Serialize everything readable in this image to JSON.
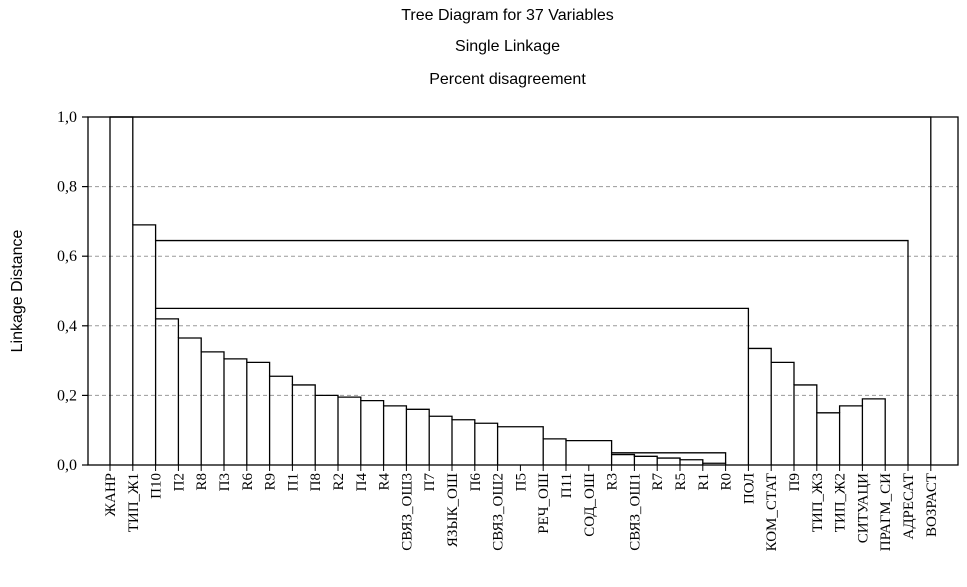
{
  "chart_data": {
    "type": "dendrogram",
    "title": "Tree Diagram for 37 Variables",
    "subtitle": "Single Linkage",
    "subtitle2": "Percent disagreement",
    "ylabel": "Linkage Distance",
    "ylim": [
      0.0,
      1.0
    ],
    "yticks": [
      {
        "value": 0.0,
        "label": "0,0"
      },
      {
        "value": 0.2,
        "label": "0,2"
      },
      {
        "value": 0.4,
        "label": "0,4"
      },
      {
        "value": 0.6,
        "label": "0,6"
      },
      {
        "value": 0.8,
        "label": "0,8"
      },
      {
        "value": 1.0,
        "label": "1,0"
      }
    ],
    "grid": "horizontal dashed",
    "leaves": [
      "ЖАНР",
      "ТИП_Ж1",
      "П10",
      "П2",
      "R8",
      "П3",
      "R6",
      "R9",
      "П1",
      "П8",
      "R2",
      "П4",
      "R4",
      "СВЯЗ_ОШ3",
      "П7",
      "ЯЗЫК_ОШ",
      "П6",
      "СВЯЗ_ОШ2",
      "П5",
      "РЕЧ_ОШ",
      "П11",
      "СОД_ОШ",
      "R3",
      "СВЯЗ_ОШ1",
      "R7",
      "R5",
      "R1",
      "R0",
      "ПОЛ",
      "КОМ_СТАТ",
      "П9",
      "ТИП_Ж3",
      "ТИП_Ж2",
      "СИТУАЦИ",
      "ПРАГМ_СИ",
      "АДРЕСАТ",
      "ВОЗРАСТ"
    ],
    "merges": [
      {
        "a": "R1",
        "b": "R0",
        "height": 0.005
      },
      {
        "a": "R7",
        "b": "R5",
        "height": 0.02
      },
      {
        "a": "R5",
        "b": "R1",
        "height": 0.015
      },
      {
        "a": "R3",
        "b": "СВЯЗ_ОШ1",
        "height": 0.03
      },
      {
        "a": "СВЯЗ_ОШ1",
        "b": "R7",
        "height": 0.025
      },
      {
        "a": "R3",
        "b": "R0",
        "height": 0.035
      },
      {
        "a": "П11",
        "b": "R3",
        "height": 0.07
      },
      {
        "a": "РЕЧ_ОШ",
        "b": "П11",
        "height": 0.075
      },
      {
        "a": "СВЯЗ_ОШ2",
        "b": "РЕЧ_ОШ",
        "height": 0.11
      },
      {
        "a": "П6",
        "b": "СВЯЗ_ОШ2",
        "height": 0.12
      },
      {
        "a": "ЯЗЫК_ОШ",
        "b": "П6",
        "height": 0.13
      },
      {
        "a": "П7",
        "b": "ЯЗЫК_ОШ",
        "height": 0.14
      },
      {
        "a": "СВЯЗ_ОШ3",
        "b": "П7",
        "height": 0.16
      },
      {
        "a": "R4",
        "b": "СВЯЗ_ОШ3",
        "height": 0.17
      },
      {
        "a": "П4",
        "b": "R4",
        "height": 0.185
      },
      {
        "a": "R2",
        "b": "П4",
        "height": 0.195
      },
      {
        "a": "П8",
        "b": "R2",
        "height": 0.2
      },
      {
        "a": "П1",
        "b": "П8",
        "height": 0.23
      },
      {
        "a": "R9",
        "b": "П1",
        "height": 0.255
      },
      {
        "a": "R6",
        "b": "R9",
        "height": 0.295
      },
      {
        "a": "П3",
        "b": "R6",
        "height": 0.305
      },
      {
        "a": "R8",
        "b": "П3",
        "height": 0.325
      },
      {
        "a": "П2",
        "b": "R8",
        "height": 0.365
      },
      {
        "a": "П10",
        "b": "П2",
        "height": 0.42
      },
      {
        "a": "ТИП_Ж3",
        "b": "ТИП_Ж2",
        "height": 0.15
      },
      {
        "a": "ТИП_Ж2",
        "b": "СИТУАЦИ",
        "height": 0.17
      },
      {
        "a": "СИТУАЦИ",
        "b": "ПРАГМ_СИ",
        "height": 0.19
      },
      {
        "a": "П9",
        "b": "ТИП_Ж3",
        "height": 0.23
      },
      {
        "a": "КОМ_СТАТ",
        "b": "П9",
        "height": 0.295
      },
      {
        "a": "ПОЛ",
        "b": "КОМ_СТАТ",
        "height": 0.335
      },
      {
        "a": "П10",
        "b": "ПОЛ",
        "height": 0.45
      },
      {
        "a": "П10",
        "b": "АДРЕСАТ",
        "height": 0.645
      },
      {
        "a": "ТИП_Ж1",
        "b": "П10",
        "height": 0.69
      },
      {
        "a": "ЖАНР",
        "b": "ТИП_Ж1",
        "height": 1.0
      },
      {
        "a": "ВОЗРАСТ",
        "b": "ЖАНР",
        "height": 1.0
      }
    ]
  }
}
